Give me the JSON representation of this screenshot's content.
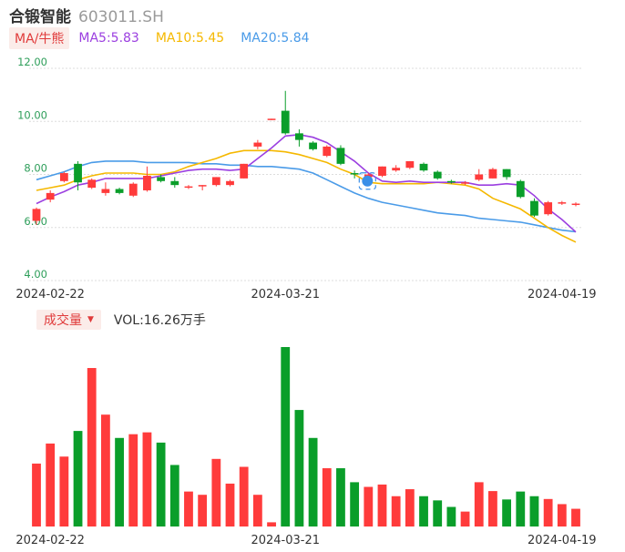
{
  "header": {
    "stock_name": "合锻智能",
    "stock_code": "603011.SH"
  },
  "ma_bar": {
    "mode_label": "MA/牛熊",
    "ma5": "MA5:5.83",
    "ma10": "MA10:5.45",
    "ma20": "MA20:5.84"
  },
  "volume_bar": {
    "mode_label": "成交量",
    "caret": "▼",
    "vol": "VOL:16.26万手"
  },
  "colors": {
    "up": "#ff3b3b",
    "down": "#0a9e2a",
    "ma5": "#9b3fe0",
    "ma10": "#f5b800",
    "ma20": "#4a9be8",
    "grid": "#dddddd",
    "ytick": "#2e9e5a",
    "highlight": "#3a8fe8"
  },
  "chart_data": {
    "type": "candlestick",
    "ylim": [
      4.0,
      12.0
    ],
    "yticks": [
      "12.00",
      "10.00",
      "8.00",
      "6.00",
      "4.00"
    ],
    "x_labels": [
      {
        "index": 1,
        "label": "2024-02-22"
      },
      {
        "index": 18,
        "label": "2024-03-21"
      },
      {
        "index": 38,
        "label": "2024-04-19"
      }
    ],
    "ohlc": [
      [
        6.25,
        6.7,
        6.1,
        6.75
      ],
      [
        7.05,
        7.3,
        6.95,
        7.4
      ],
      [
        7.75,
        8.05,
        7.7,
        8.1
      ],
      [
        8.4,
        7.7,
        7.4,
        8.5
      ],
      [
        7.5,
        7.8,
        7.45,
        7.85
      ],
      [
        7.3,
        7.45,
        7.2,
        7.7
      ],
      [
        7.45,
        7.3,
        7.25,
        7.5
      ],
      [
        7.2,
        7.65,
        7.15,
        7.7
      ],
      [
        7.4,
        7.95,
        7.35,
        8.3
      ],
      [
        7.9,
        7.75,
        7.7,
        8.0
      ],
      [
        7.75,
        7.6,
        7.5,
        7.9
      ],
      [
        7.55,
        7.55,
        7.45,
        7.6
      ],
      [
        7.55,
        7.6,
        7.4,
        7.6
      ],
      [
        7.6,
        7.9,
        7.55,
        7.9
      ],
      [
        7.6,
        7.75,
        7.55,
        7.8
      ],
      [
        7.85,
        8.4,
        7.85,
        8.4
      ],
      [
        9.05,
        9.2,
        8.95,
        9.3
      ],
      [
        10.1,
        10.1,
        10.05,
        10.1
      ],
      [
        10.4,
        9.55,
        9.5,
        11.15
      ],
      [
        9.55,
        9.3,
        9.05,
        9.7
      ],
      [
        9.2,
        8.95,
        8.9,
        9.25
      ],
      [
        8.7,
        9.05,
        8.65,
        9.1
      ],
      [
        9.0,
        8.4,
        8.35,
        9.1
      ],
      [
        8.05,
        8.0,
        7.85,
        8.15
      ],
      [
        7.9,
        8.0,
        7.85,
        8.05
      ],
      [
        7.95,
        8.3,
        7.9,
        8.3
      ],
      [
        8.15,
        8.25,
        8.1,
        8.35
      ],
      [
        8.25,
        8.5,
        8.2,
        8.5
      ],
      [
        8.4,
        8.15,
        8.1,
        8.45
      ],
      [
        8.1,
        7.85,
        7.8,
        8.15
      ],
      [
        7.75,
        7.7,
        7.65,
        7.8
      ],
      [
        7.65,
        7.7,
        7.6,
        7.75
      ],
      [
        7.8,
        8.0,
        7.75,
        8.2
      ],
      [
        7.85,
        8.2,
        7.85,
        8.25
      ],
      [
        8.2,
        7.9,
        7.8,
        8.2
      ],
      [
        7.75,
        7.15,
        7.1,
        7.8
      ],
      [
        7.0,
        6.45,
        6.4,
        7.1
      ],
      [
        6.5,
        6.95,
        6.45,
        7.0
      ],
      [
        6.9,
        6.95,
        6.85,
        7.0
      ],
      [
        6.85,
        6.9,
        6.8,
        6.95
      ]
    ],
    "ma5": [
      6.9,
      7.15,
      7.35,
      7.6,
      7.7,
      7.85,
      7.85,
      7.85,
      7.85,
      7.95,
      8.05,
      8.15,
      8.2,
      8.2,
      8.15,
      8.2,
      8.6,
      9.0,
      9.45,
      9.5,
      9.4,
      9.2,
      8.85,
      8.5,
      8.05,
      7.75,
      7.7,
      7.75,
      7.7,
      7.7,
      7.7,
      7.7,
      7.6,
      7.6,
      7.65,
      7.6,
      7.2,
      6.7,
      6.3,
      5.83
    ],
    "ma10": [
      7.4,
      7.5,
      7.6,
      7.8,
      7.95,
      8.05,
      8.05,
      8.05,
      8.0,
      8.0,
      8.1,
      8.3,
      8.45,
      8.6,
      8.8,
      8.9,
      8.9,
      8.9,
      8.85,
      8.75,
      8.6,
      8.45,
      8.2,
      8.0,
      7.7,
      7.65,
      7.65,
      7.65,
      7.65,
      7.7,
      7.65,
      7.6,
      7.45,
      7.1,
      6.9,
      6.7,
      6.35,
      6.0,
      5.7,
      5.45
    ],
    "ma20": [
      7.8,
      7.95,
      8.1,
      8.3,
      8.45,
      8.5,
      8.5,
      8.5,
      8.45,
      8.45,
      8.45,
      8.45,
      8.4,
      8.4,
      8.35,
      8.35,
      8.3,
      8.3,
      8.25,
      8.2,
      8.05,
      7.8,
      7.55,
      7.3,
      7.1,
      6.95,
      6.85,
      6.75,
      6.65,
      6.55,
      6.5,
      6.45,
      6.35,
      6.3,
      6.25,
      6.2,
      6.1,
      6.0,
      5.9,
      5.84
    ],
    "volume": [
      13.5,
      17.8,
      15.0,
      20.5,
      34.0,
      24.0,
      19.0,
      19.8,
      20.2,
      18.0,
      13.2,
      7.5,
      6.8,
      14.5,
      9.2,
      12.8,
      6.8,
      0.9,
      38.5,
      25.0,
      19.0,
      12.5,
      12.5,
      9.5,
      8.5,
      9.0,
      6.5,
      8.0,
      6.5,
      5.6,
      4.2,
      3.2,
      9.5,
      7.6,
      5.8,
      7.5,
      6.5,
      5.9,
      4.8,
      3.8
    ]
  }
}
